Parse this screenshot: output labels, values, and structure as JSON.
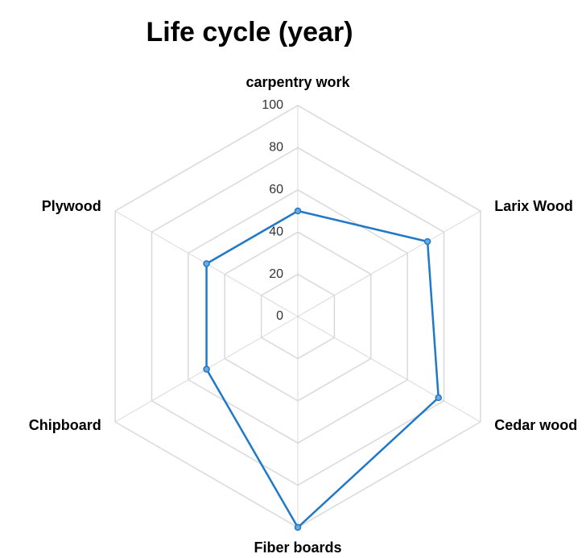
{
  "chart_data": {
    "type": "radar",
    "title": "Life cycle (year)",
    "categories": [
      "carpentry work",
      "Larix Wood",
      "Cedar wood",
      "Fiber boards",
      "Chipboard",
      "Plywood"
    ],
    "series": [
      {
        "name": "Life cycle (year)",
        "color": "#1f78c8",
        "values": [
          50,
          71,
          77,
          100,
          50,
          50
        ]
      }
    ],
    "ylim": [
      0,
      100
    ],
    "yticks": [
      0,
      20,
      40,
      60,
      80,
      100
    ],
    "grid": true
  }
}
